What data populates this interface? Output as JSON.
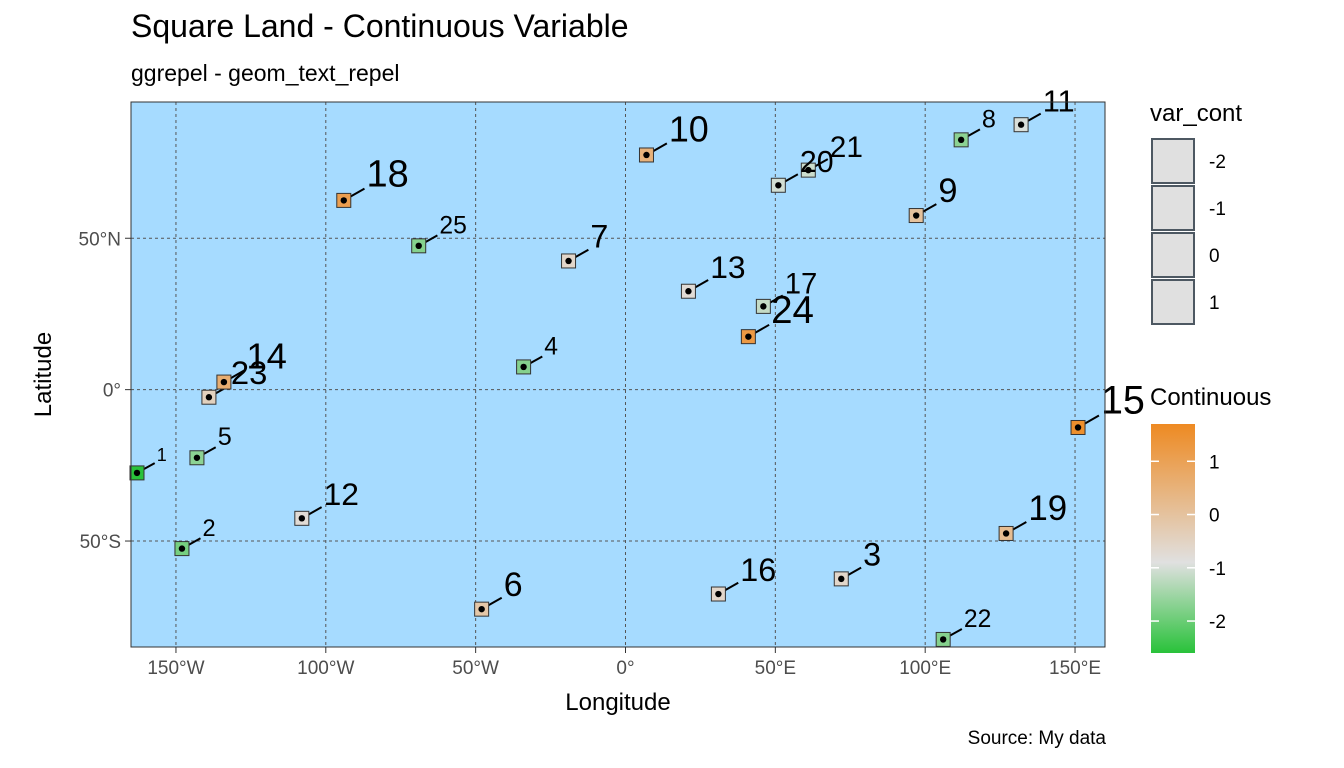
{
  "title": "Square Land - Continuous Variable",
  "subtitle": "ggrepel - geom_text_repel",
  "caption": "Source: My data",
  "colors": {
    "panel_bg": "#a6dbff",
    "grid": "#555555",
    "point": "#000000",
    "low": "#29c23a",
    "mid": "#e0e0e0",
    "high": "#ee8a22",
    "square_border": "#333333"
  },
  "chart_data": {
    "type": "scatter",
    "xlabel": "Longitude",
    "ylabel": "Latitude",
    "xlim": [
      -165,
      160
    ],
    "ylim": [
      -85,
      95
    ],
    "x_ticks": [
      {
        "value": -150,
        "label": "150°W"
      },
      {
        "value": -100,
        "label": "100°W"
      },
      {
        "value": -50,
        "label": "50°W"
      },
      {
        "value": 0,
        "label": "0°"
      },
      {
        "value": 50,
        "label": "50°E"
      },
      {
        "value": 100,
        "label": "100°E"
      },
      {
        "value": 150,
        "label": "150°E"
      }
    ],
    "y_ticks": [
      {
        "value": 50,
        "label": "50°N"
      },
      {
        "value": 0,
        "label": "0°"
      },
      {
        "value": -50,
        "label": "50°S"
      }
    ],
    "grid": true,
    "points": [
      {
        "label": "1",
        "x": -163,
        "y": -27.5,
        "value": -2.6
      },
      {
        "label": "2",
        "x": -148,
        "y": -52.5,
        "value": -1.5
      },
      {
        "label": "3",
        "x": 72,
        "y": -62.5,
        "value": 0.2
      },
      {
        "label": "4",
        "x": -34,
        "y": 7.5,
        "value": -1.3
      },
      {
        "label": "5",
        "x": -143,
        "y": -22.5,
        "value": -1.2
      },
      {
        "label": "6",
        "x": -48,
        "y": -72.5,
        "value": 0.5
      },
      {
        "label": "7",
        "x": -19,
        "y": 42.5,
        "value": 0.2
      },
      {
        "label": "8",
        "x": 112,
        "y": 82.5,
        "value": -1.2
      },
      {
        "label": "9",
        "x": 97,
        "y": 57.5,
        "value": 0.6
      },
      {
        "label": "10",
        "x": 7,
        "y": 77.5,
        "value": 0.9
      },
      {
        "label": "11",
        "x": 132,
        "y": 87.5,
        "value": -0.1
      },
      {
        "label": "12",
        "x": -108,
        "y": -42.5,
        "value": 0.1
      },
      {
        "label": "13",
        "x": 21,
        "y": 32.5,
        "value": 0.1
      },
      {
        "label": "14",
        "x": -134,
        "y": 2.5,
        "value": 1.0
      },
      {
        "label": "15",
        "x": 151,
        "y": -12.5,
        "value": 1.6
      },
      {
        "label": "16",
        "x": 31,
        "y": -67.5,
        "value": 0.2
      },
      {
        "label": "17",
        "x": 46,
        "y": 27.5,
        "value": -0.4
      },
      {
        "label": "18",
        "x": -94,
        "y": 62.5,
        "value": 1.3
      },
      {
        "label": "19",
        "x": 127,
        "y": -47.5,
        "value": 0.7
      },
      {
        "label": "20",
        "x": 51,
        "y": 67.5,
        "value": -0.2
      },
      {
        "label": "21",
        "x": 61,
        "y": 72.5,
        "value": -0.3
      },
      {
        "label": "22",
        "x": 106,
        "y": -82.5,
        "value": -1.3
      },
      {
        "label": "23",
        "x": -139,
        "y": -2.5,
        "value": 0.3
      },
      {
        "label": "24",
        "x": 41,
        "y": 17.5,
        "value": 1.4
      },
      {
        "label": "25",
        "x": -69,
        "y": 47.5,
        "value": -1.3
      }
    ],
    "legend_size": {
      "title": "var_cont",
      "labels": [
        "-2",
        "-1",
        "0",
        "1"
      ]
    },
    "legend_color": {
      "title": "Continuous",
      "range": [
        -2.6,
        1.7
      ],
      "breaks": [
        1,
        0,
        -1,
        -2
      ],
      "break_labels": [
        "1",
        "0",
        "-1",
        "-2"
      ]
    }
  }
}
